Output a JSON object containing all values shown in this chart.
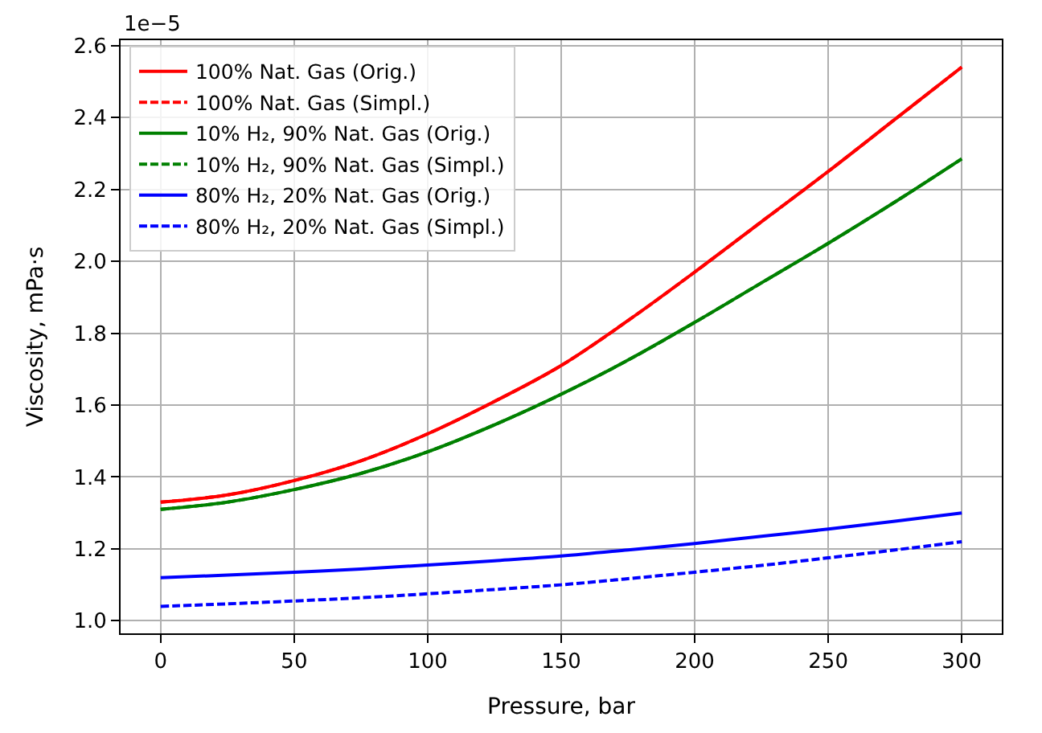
{
  "chart_data": {
    "type": "line",
    "xlabel": "Pressure, bar",
    "ylabel": "Viscosity, mPa⋅s",
    "annotations": [
      "1e−5"
    ],
    "x": [
      0,
      25,
      50,
      75,
      100,
      125,
      150,
      175,
      200,
      225,
      250,
      275,
      300
    ],
    "series": [
      {
        "name": "100% Nat. Gas (Orig.)",
        "color": "#ff0000",
        "line_style": "solid",
        "values": [
          1.33,
          1.35,
          1.39,
          1.445,
          1.52,
          1.61,
          1.71,
          1.835,
          1.97,
          2.11,
          2.25,
          2.395,
          2.54
        ]
      },
      {
        "name": "100% Nat. Gas (Simpl.)",
        "color": "#ff0000",
        "line_style": "dashed",
        "values": [
          1.33,
          1.35,
          1.39,
          1.445,
          1.52,
          1.61,
          1.71,
          1.835,
          1.97,
          2.11,
          2.25,
          2.395,
          2.54
        ]
      },
      {
        "name": "10% H₂, 90% Nat. Gas (Orig.)",
        "color": "#008000",
        "line_style": "solid",
        "values": [
          1.31,
          1.33,
          1.365,
          1.41,
          1.47,
          1.545,
          1.63,
          1.725,
          1.83,
          1.94,
          2.05,
          2.165,
          2.285
        ]
      },
      {
        "name": "10% H₂, 90% Nat. Gas (Simpl.)",
        "color": "#008000",
        "line_style": "dashed",
        "values": [
          1.31,
          1.33,
          1.365,
          1.41,
          1.47,
          1.545,
          1.63,
          1.725,
          1.83,
          1.94,
          2.05,
          2.165,
          2.285
        ]
      },
      {
        "name": "80% H₂, 20% Nat. Gas (Orig.)",
        "color": "#0000ff",
        "line_style": "solid",
        "values": [
          1.12,
          1.127,
          1.135,
          1.144,
          1.155,
          1.167,
          1.18,
          1.197,
          1.215,
          1.235,
          1.255,
          1.277,
          1.3
        ]
      },
      {
        "name": "80% H₂, 20% Nat. Gas (Simpl.)",
        "color": "#0000ff",
        "line_style": "dashed",
        "values": [
          1.04,
          1.047,
          1.055,
          1.064,
          1.075,
          1.087,
          1.1,
          1.117,
          1.135,
          1.154,
          1.175,
          1.197,
          1.22
        ]
      }
    ],
    "xlim": [
      -15,
      315
    ],
    "xticks": [
      0,
      50,
      100,
      150,
      200,
      250,
      300
    ],
    "ylim": [
      0.965,
      2.615
    ],
    "yticks": [
      {
        "value": 1.0,
        "label": "1.0"
      },
      {
        "value": 1.2,
        "label": "1.2"
      },
      {
        "value": 1.4,
        "label": "1.4"
      },
      {
        "value": 1.6,
        "label": "1.6"
      },
      {
        "value": 1.8,
        "label": "1.8"
      },
      {
        "value": 2.0,
        "label": "2.0"
      },
      {
        "value": 2.2,
        "label": "2.2"
      },
      {
        "value": 2.4,
        "label": "2.4"
      },
      {
        "value": 2.6,
        "label": "2.6"
      }
    ],
    "grid": true,
    "legend": "top left",
    "marker": "none"
  }
}
